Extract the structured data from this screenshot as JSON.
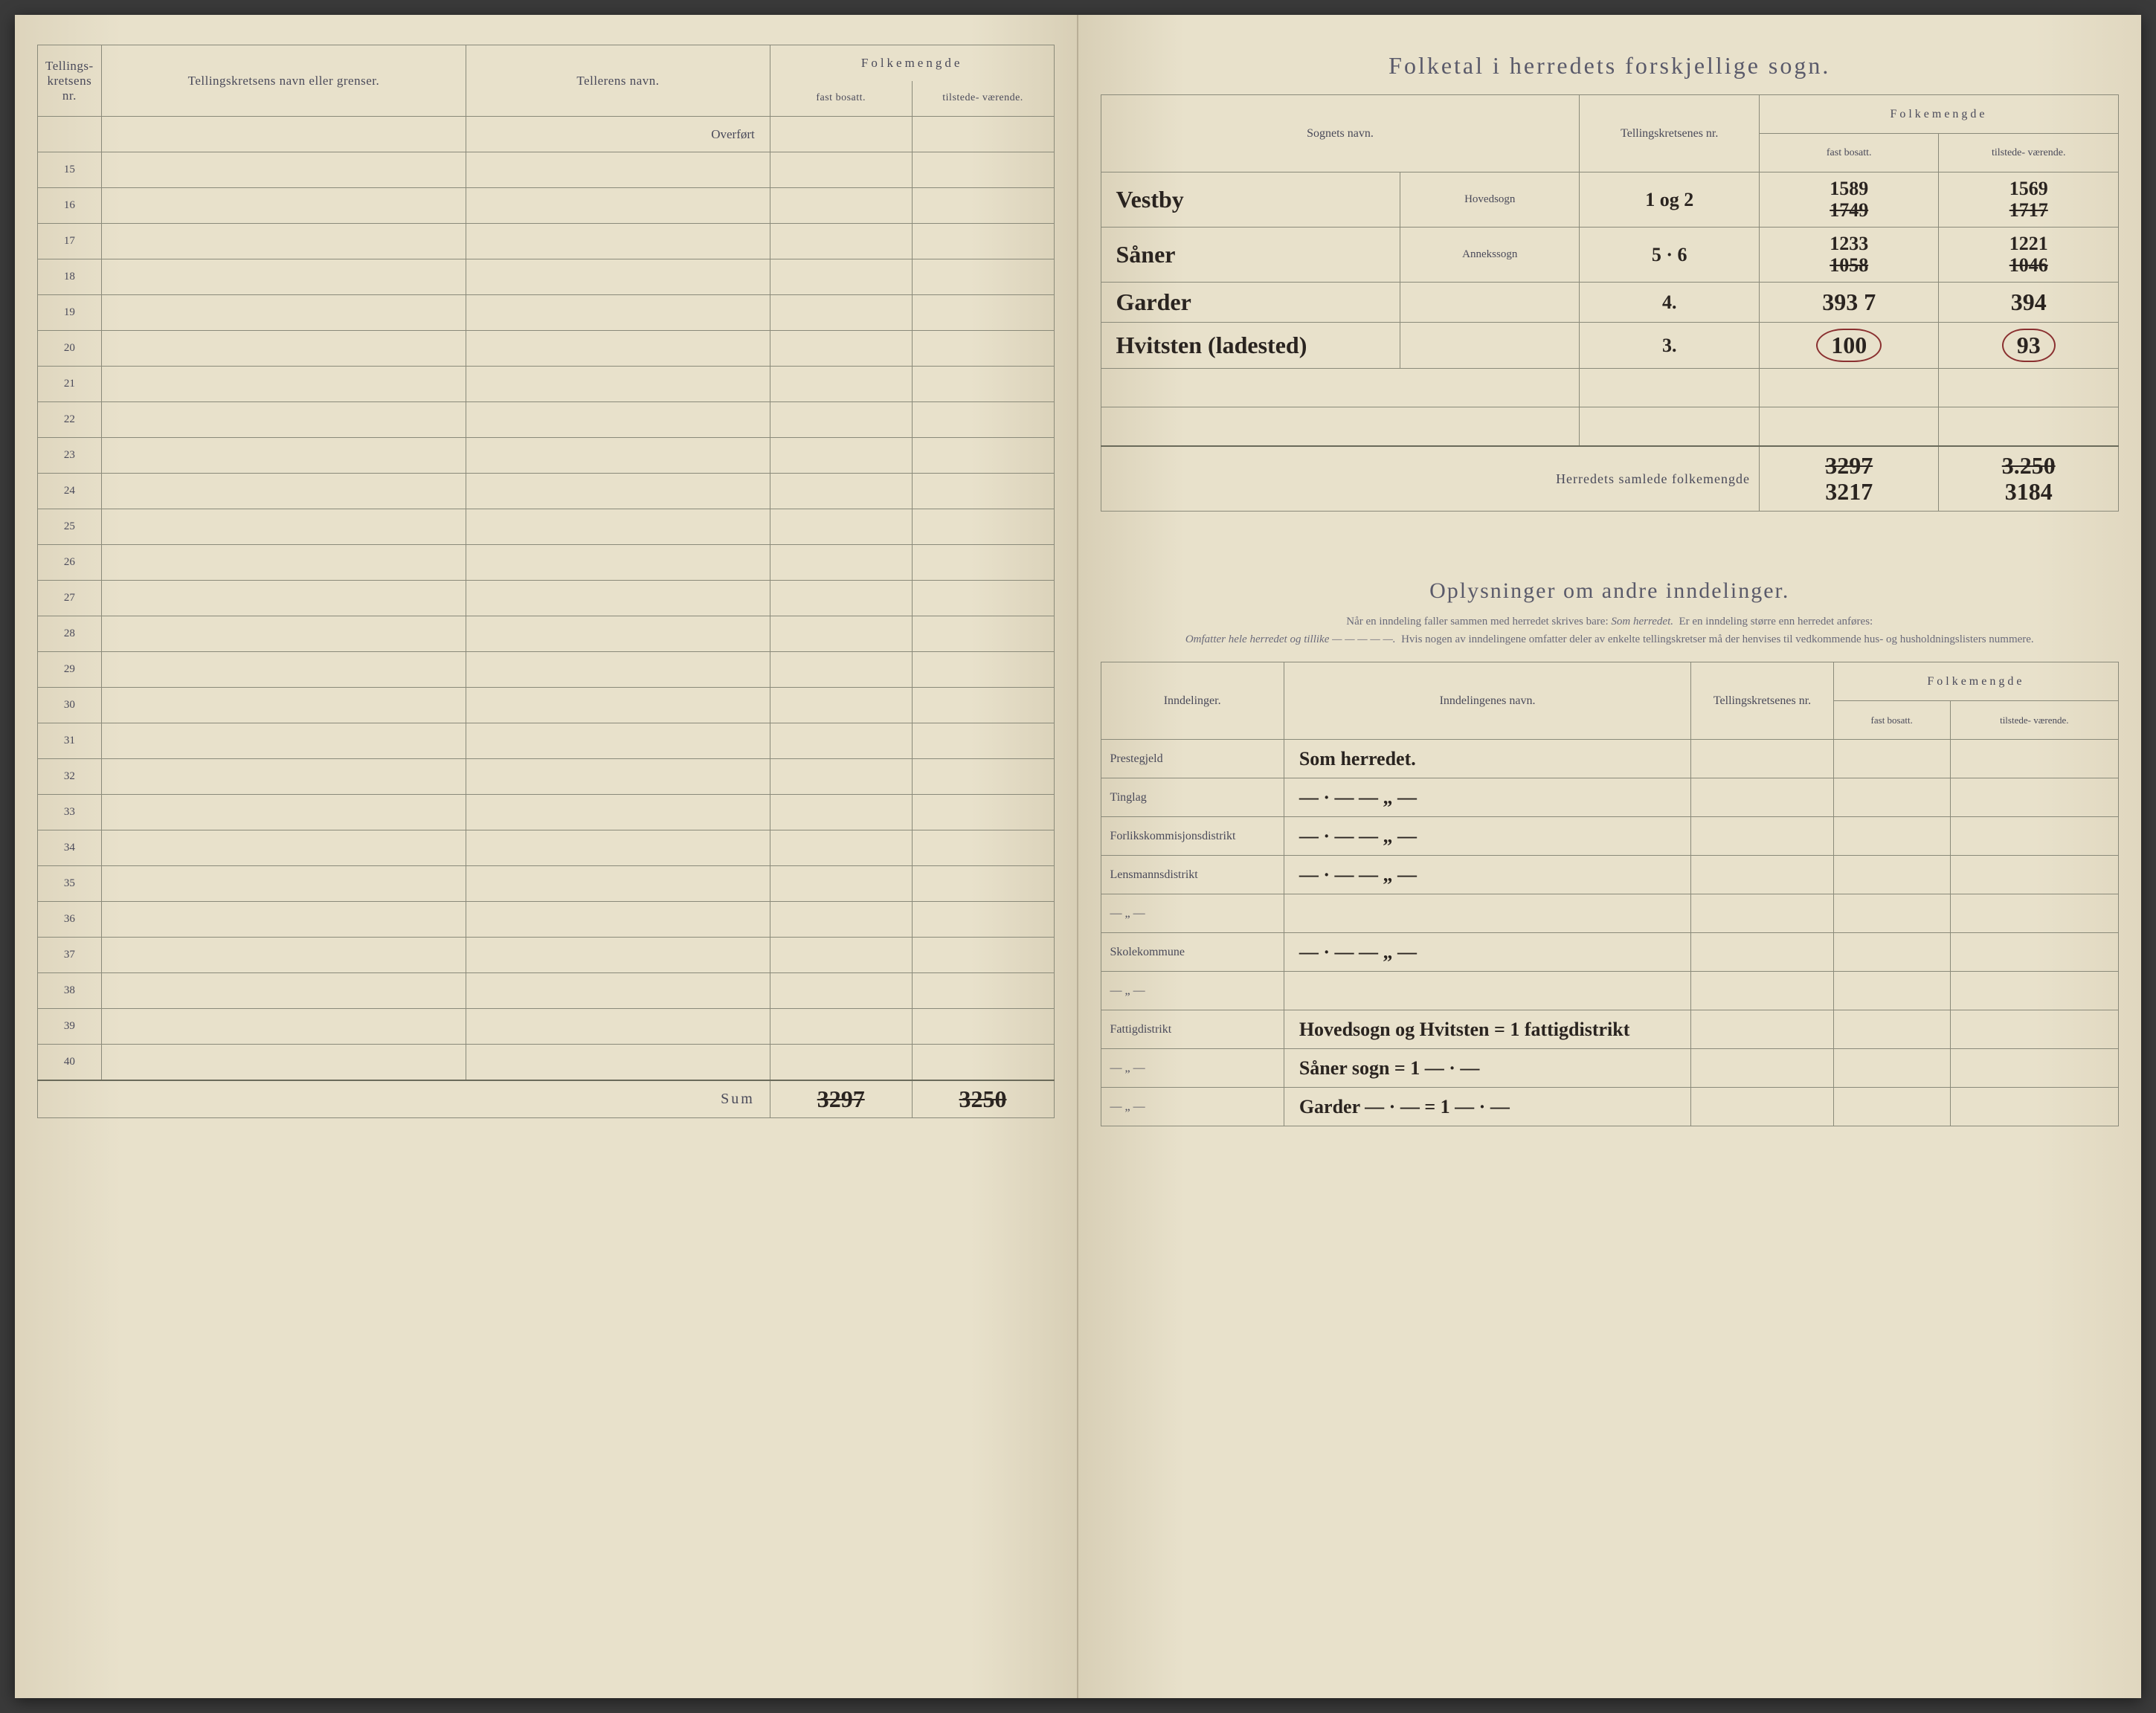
{
  "leftPage": {
    "headers": {
      "nr": "Tellings-\nkretsens\nnr.",
      "name": "Tellingskretsens navn eller grenser.",
      "teller": "Tellerens navn.",
      "folkegroup": "Folkemengde",
      "fast": "fast\nbosatt.",
      "tilstede": "tilstede-\nværende."
    },
    "overfort": "Overført",
    "rowStart": 15,
    "rowEnd": 40,
    "sumLabel": "Sum",
    "sumFast": "3297",
    "sumTil": "3250"
  },
  "rightTop": {
    "title": "Folketal i herredets forskjellige sogn.",
    "headers": {
      "sogn": "Sognets navn.",
      "kretsnr": "Tellingskretsenes\nnr.",
      "folkegroup": "Folkemengde",
      "fast": "fast\nbosatt.",
      "tilstede": "tilstede-\nværende."
    },
    "rows": [
      {
        "name": "Vestby",
        "type": "Hovedsogn",
        "nr": "1 og 2",
        "fastTop": "1589",
        "fastBot": "1749",
        "tilTop": "1569",
        "tilBot": "1717"
      },
      {
        "name": "Såner",
        "type": "Annekssogn",
        "nr": "5 · 6",
        "fastTop": "1233",
        "fastBot": "1058",
        "tilTop": "1221",
        "tilBot": "1046"
      },
      {
        "name": "Garder",
        "type": "",
        "nr": "4.",
        "fast": "393 7",
        "til": "394"
      },
      {
        "name": "Hvitsten (ladested)",
        "type": "",
        "nr": "3.",
        "fast": "100",
        "til": "93",
        "circled": true
      }
    ],
    "emptyRows": 2,
    "totalLabel": "Herredets samlede folkemengde",
    "totalFastTop": "3297",
    "totalFastBot": "3217",
    "totalTilTop": "3.250",
    "totalTilBot": "3184"
  },
  "rightBottom": {
    "title": "Oplysninger om andre inndelinger.",
    "note1": "Når en inndeling faller sammen med herredet skrives bare:",
    "noteItalic1": "Som herredet.",
    "note2": "Er en inndeling større enn herredet anføres:",
    "noteItalic2": "Omfatter hele herredet og tillike — — — — —.",
    "note3": "Hvis nogen av inndelingene omfatter deler av enkelte tellingskretser må der henvises til vedkommende hus- og husholdningslisters nummere.",
    "headers": {
      "ind": "Inndelinger.",
      "indname": "Inndelingenes navn.",
      "kretsnr": "Tellingskretsenes\nnr.",
      "folkegroup": "Folkemengde",
      "fast": "fast\nbosatt.",
      "tilstede": "tilstede-\nværende."
    },
    "rows": [
      {
        "label": "Prestegjeld",
        "value": "Som herredet."
      },
      {
        "label": "Tinglag",
        "value": "— · —        — „ —"
      },
      {
        "label": "Forlikskommisjonsdistrikt",
        "value": "— · —        — „ —"
      },
      {
        "label": "Lensmannsdistrikt",
        "value": "— · —        — „ —"
      },
      {
        "label": "— „ —",
        "value": ""
      },
      {
        "label": "Skolekommune",
        "value": "— · —        — „ —"
      },
      {
        "label": "— „ —",
        "value": ""
      },
      {
        "label": "Fattigdistrikt",
        "value": "Hovedsogn og Hvitsten = 1 fattigdistrikt"
      },
      {
        "label": "— „ —",
        "value": "Såner sogn = 1  — · —"
      },
      {
        "label": "— „ —",
        "value": "Garder  — · — = 1  — · —"
      }
    ]
  }
}
